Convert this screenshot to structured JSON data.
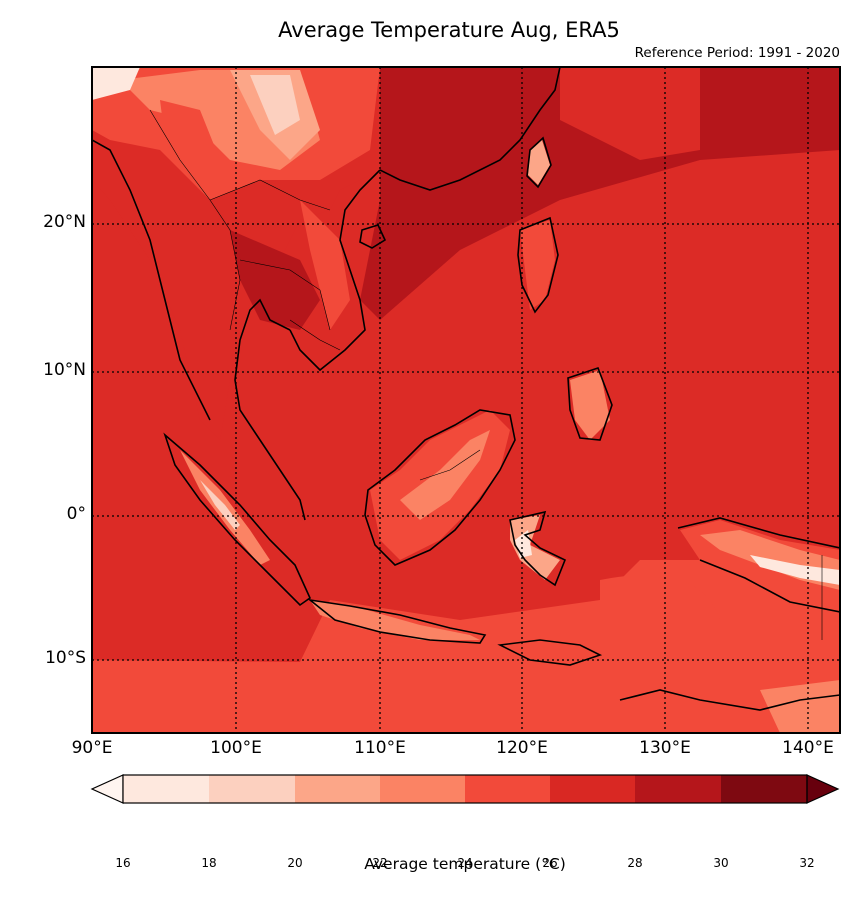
{
  "figure": {
    "title": "Average Temperature Aug, ERA5",
    "subtitle": "Reference Period: 1991 - 2020"
  },
  "map": {
    "projection": "plate-carree",
    "lon_range": [
      90,
      142
    ],
    "lat_range": [
      -15,
      31
    ],
    "gridlines": "dotted black",
    "lat_ticks": [
      {
        "value": 20,
        "label": "20°N"
      },
      {
        "value": 10,
        "label": "10°N"
      },
      {
        "value": 0,
        "label": "0°"
      },
      {
        "value": -10,
        "label": "10°S"
      }
    ],
    "lon_ticks": [
      {
        "value": 90,
        "label": "90°E"
      },
      {
        "value": 100,
        "label": "100°E"
      },
      {
        "value": 110,
        "label": "110°E"
      },
      {
        "value": 120,
        "label": "120°E"
      },
      {
        "value": 130,
        "label": "130°E"
      },
      {
        "value": 140,
        "label": "140°E"
      }
    ],
    "background_color": "#dc2b26",
    "ocean_south_color": "#f24a3a"
  },
  "colorbar": {
    "label": "Average temperature (°C)",
    "ticks": [
      "16",
      "18",
      "20",
      "22",
      "24",
      "26",
      "28",
      "30",
      "32"
    ],
    "levels": [
      {
        "range": [
          16,
          18
        ],
        "color": "#fee8de"
      },
      {
        "range": [
          18,
          20
        ],
        "color": "#fcd0bf"
      },
      {
        "range": [
          20,
          22
        ],
        "color": "#fca688"
      },
      {
        "range": [
          22,
          24
        ],
        "color": "#fb8364"
      },
      {
        "range": [
          24,
          26
        ],
        "color": "#f24a3a"
      },
      {
        "range": [
          26,
          28
        ],
        "color": "#d92823"
      },
      {
        "range": [
          28,
          30
        ],
        "color": "#b5161b"
      },
      {
        "range": [
          30,
          32
        ],
        "color": "#7e0911"
      }
    ],
    "under_color": "#fff5f0",
    "over_color": "#67000d",
    "extend": "both"
  }
}
